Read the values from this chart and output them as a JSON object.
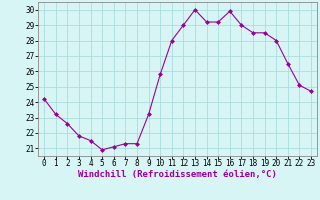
{
  "hours": [
    0,
    1,
    2,
    3,
    4,
    5,
    6,
    7,
    8,
    9,
    10,
    11,
    12,
    13,
    14,
    15,
    16,
    17,
    18,
    19,
    20,
    21,
    22,
    23
  ],
  "values": [
    24.2,
    23.2,
    22.6,
    21.8,
    21.5,
    20.9,
    21.1,
    21.3,
    21.3,
    23.2,
    25.8,
    28.0,
    29.0,
    30.0,
    29.2,
    29.2,
    29.9,
    29.0,
    28.5,
    28.5,
    28.0,
    26.5,
    25.1,
    24.7
  ],
  "line_color": "#990099",
  "marker": "D",
  "marker_size": 2.0,
  "bg_color": "#d8f5f5",
  "grid_color": "#aadddd",
  "xlabel": "Windchill (Refroidissement éolien,°C)",
  "ylim": [
    20.5,
    30.5
  ],
  "xlim": [
    -0.5,
    23.5
  ],
  "yticks": [
    21,
    22,
    23,
    24,
    25,
    26,
    27,
    28,
    29,
    30
  ],
  "xticks": [
    0,
    1,
    2,
    3,
    4,
    5,
    6,
    7,
    8,
    9,
    10,
    11,
    12,
    13,
    14,
    15,
    16,
    17,
    18,
    19,
    20,
    21,
    22,
    23
  ],
  "tick_label_fontsize": 5.5,
  "xlabel_fontsize": 6.5
}
